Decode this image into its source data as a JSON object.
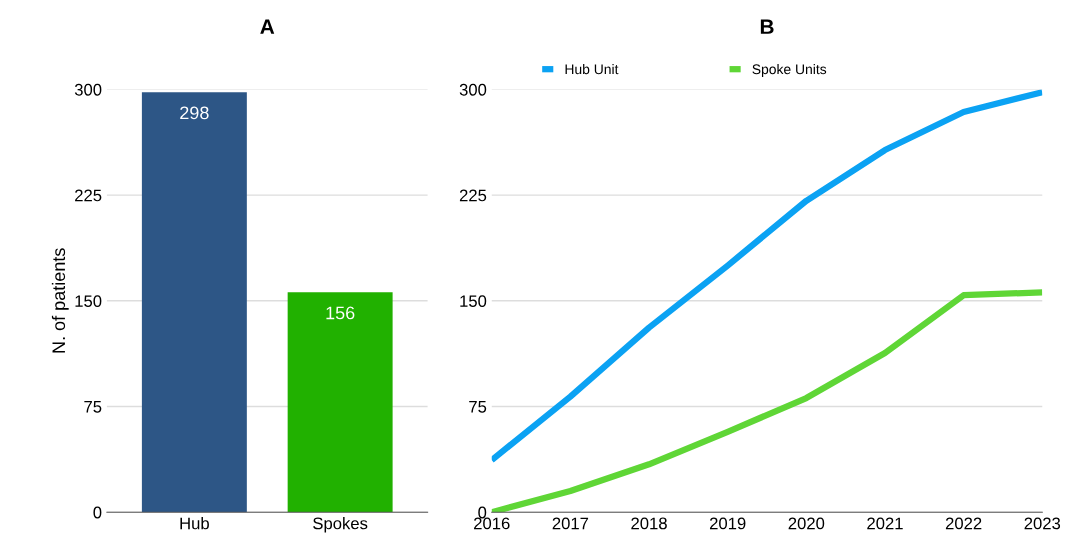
{
  "chart_data": [
    {
      "type": "bar",
      "title": "A",
      "ylabel": "N. of patients",
      "categories": [
        "Hub",
        "Spokes"
      ],
      "values": [
        298,
        156
      ],
      "colors": [
        "#2d5686",
        "#21b100"
      ],
      "ylim": [
        0,
        300
      ],
      "yticks": [
        0,
        75,
        150,
        225,
        300
      ],
      "grid": "y",
      "data_labels": true
    },
    {
      "type": "line",
      "title": "B",
      "x": [
        2016,
        2017,
        2018,
        2019,
        2020,
        2021,
        2022,
        2023
      ],
      "xlim": [
        2016,
        2023
      ],
      "xticks": [
        2016,
        2017,
        2018,
        2019,
        2020,
        2021,
        2022,
        2023
      ],
      "ylim": [
        0,
        300
      ],
      "yticks": [
        0,
        75,
        150,
        225,
        300
      ],
      "grid": "y",
      "legend": "top",
      "series": [
        {
          "name": "Hub Unit",
          "color": "#0ba2f3",
          "values": [
            37,
            82,
            131,
            175,
            221,
            257,
            284,
            298
          ]
        },
        {
          "name": "Spoke Units",
          "color": "#5fd636",
          "values": [
            0,
            15,
            34,
            57,
            81,
            113,
            154,
            156
          ]
        }
      ]
    }
  ]
}
